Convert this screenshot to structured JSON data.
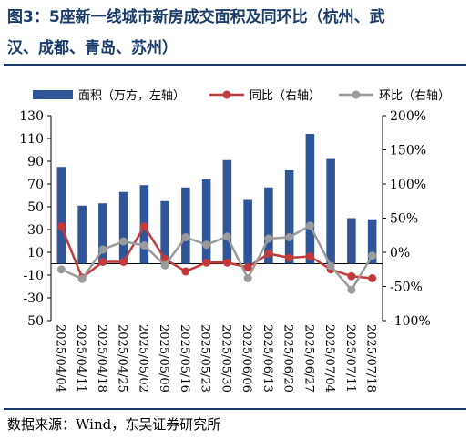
{
  "header": {
    "title_line1": "图3：5座新一线城市新房成交面积及同环比（杭州、武",
    "title_line2": "汉、成都、青岛、苏州）"
  },
  "footer": {
    "source": "数据来源：Wind，东吴证券研究所"
  },
  "colors": {
    "bar": "#2e5597",
    "yoy": "#c43a3a",
    "mom": "#9a9a9a",
    "title": "#1a3a6b"
  },
  "chart_data": {
    "type": "bar+line",
    "categories": [
      "2025/04/04",
      "2025/04/11",
      "2025/04/18",
      "2025/04/25",
      "2025/05/02",
      "2025/05/09",
      "2025/05/16",
      "2025/05/23",
      "2025/05/30",
      "2025/06/06",
      "2025/06/13",
      "2025/06/20",
      "2025/06/27",
      "2025/07/04",
      "2025/07/11",
      "2025/07/18"
    ],
    "series": [
      {
        "name": "面积（万方，左轴）",
        "type": "bar",
        "axis": "left",
        "values": [
          85,
          51,
          53,
          63,
          69,
          55,
          67,
          74,
          91,
          56,
          67,
          82,
          114,
          92,
          40,
          39
        ]
      },
      {
        "name": "同比（右轴）",
        "type": "line",
        "axis": "right",
        "values": [
          38,
          -37,
          -14,
          -14,
          38,
          -10,
          -28,
          -15,
          -15,
          -22,
          -2,
          -8,
          -6,
          -25,
          -35,
          -38
        ]
      },
      {
        "name": "环比（右轴）",
        "type": "line",
        "axis": "right",
        "values": [
          -25,
          -39,
          4,
          16,
          10,
          -19,
          22,
          11,
          23,
          -38,
          20,
          22,
          39,
          -20,
          -55,
          -5
        ]
      }
    ],
    "y_left": {
      "min": -50,
      "max": 130,
      "ticks": [
        "130",
        "110",
        "90",
        "70",
        "50",
        "30",
        "10",
        "-10",
        "-30",
        "-50"
      ]
    },
    "y_right": {
      "min": -100,
      "max": 200,
      "ticks": [
        "200%",
        "150%",
        "100%",
        "50%",
        "0%",
        "-50%",
        "-100%"
      ]
    },
    "legend_position": "top"
  }
}
